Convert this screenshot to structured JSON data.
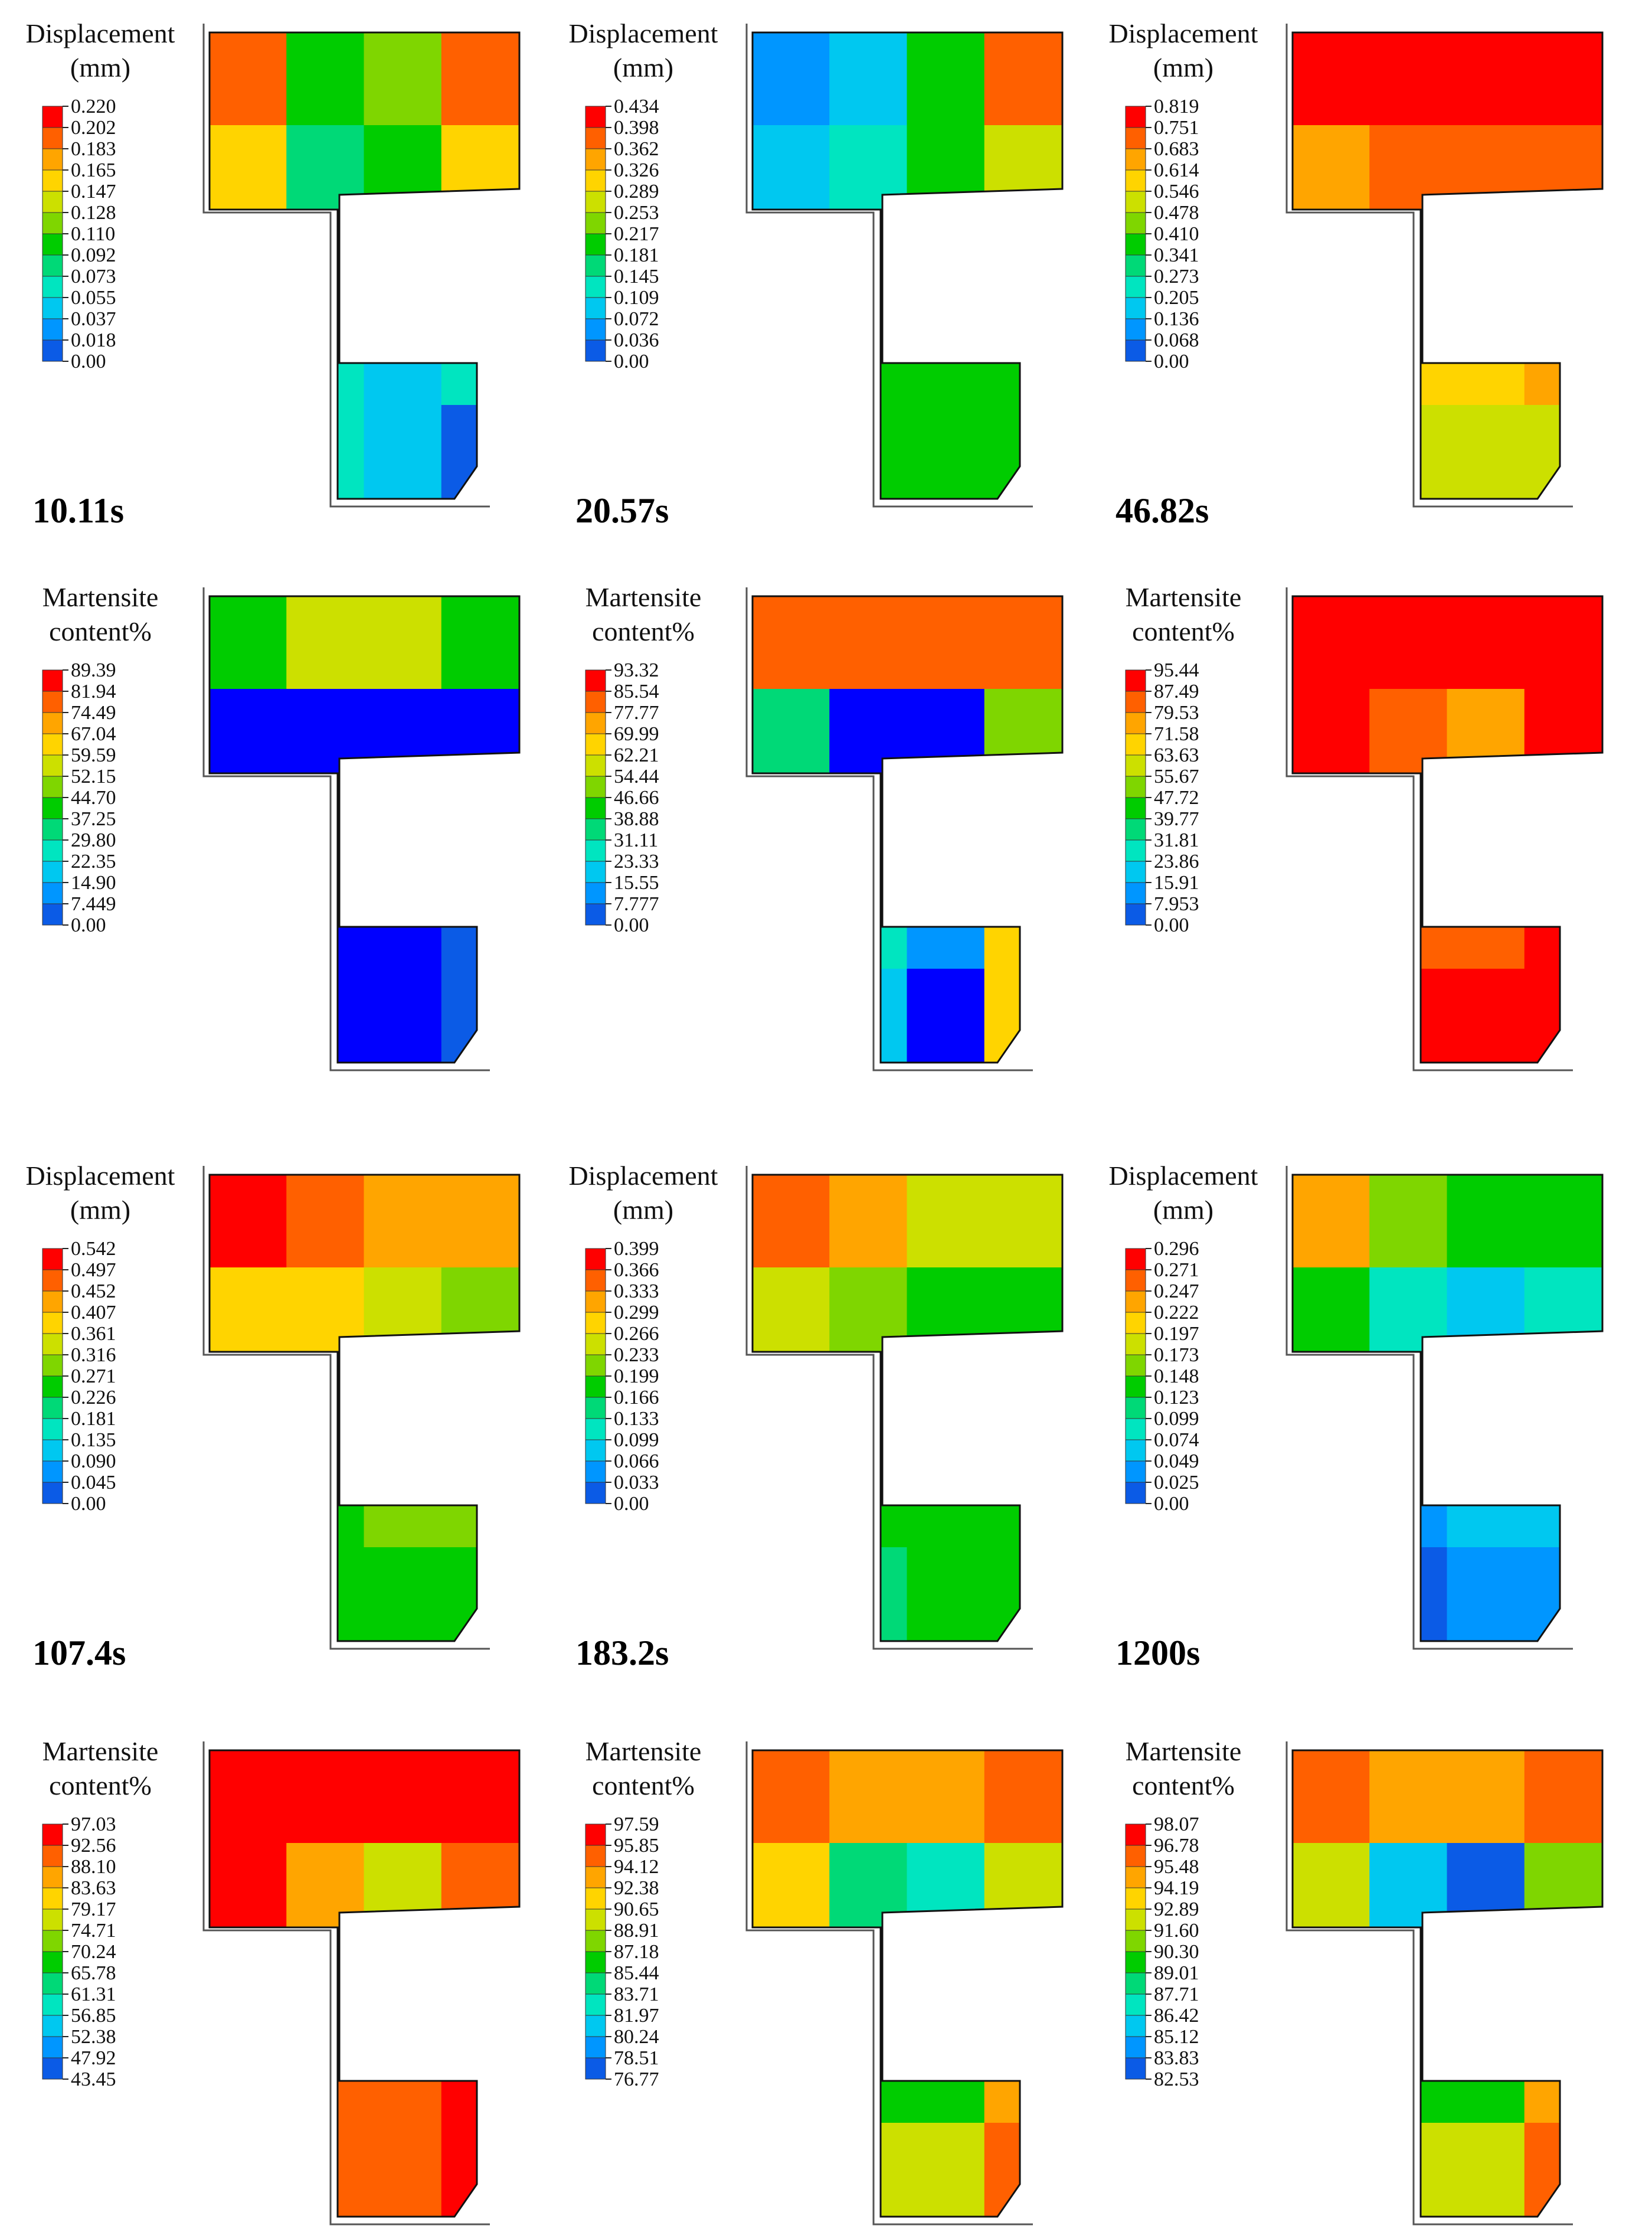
{
  "colorscale": [
    "#0000ff",
    "#0b5be6",
    "#0096ff",
    "#00c8f0",
    "#00e5c0",
    "#00d977",
    "#00cc00",
    "#7fd600",
    "#cce000",
    "#ffd400",
    "#ffa500",
    "#ff6000",
    "#ff0000"
  ],
  "panels": [
    {
      "row": 0,
      "col": 0,
      "kind": "disp",
      "title_lines": [
        "Displacement",
        "(mm)"
      ],
      "ticks": [
        "0.220",
        "0.202",
        "0.183",
        "0.165",
        "0.147",
        "0.128",
        "0.110",
        "0.092",
        "0.073",
        "0.055",
        "0.037",
        "0.018",
        "0.00"
      ],
      "field": [
        [
          11,
          6,
          7,
          11
        ],
        [
          9,
          5,
          6,
          9
        ],
        [
          7,
          4,
          3,
          5
        ],
        [
          6,
          4,
          3,
          4
        ],
        [
          5,
          4,
          3,
          1
        ]
      ]
    },
    {
      "row": 0,
      "col": 1,
      "kind": "disp",
      "title_lines": [
        "Displacement",
        "(mm)"
      ],
      "ticks": [
        "0.434",
        "0.398",
        "0.362",
        "0.326",
        "0.289",
        "0.253",
        "0.217",
        "0.181",
        "0.145",
        "0.109",
        "0.072",
        "0.036",
        "0.00"
      ],
      "field": [
        [
          2,
          3,
          6,
          11
        ],
        [
          3,
          4,
          6,
          8
        ],
        [
          5,
          6,
          6,
          6
        ],
        [
          6,
          6,
          6,
          6
        ],
        [
          6,
          6,
          6,
          6
        ]
      ]
    },
    {
      "row": 0,
      "col": 2,
      "kind": "disp",
      "title_lines": [
        "Displacement",
        "(mm)"
      ],
      "ticks": [
        "0.819",
        "0.751",
        "0.683",
        "0.614",
        "0.546",
        "0.478",
        "0.410",
        "0.341",
        "0.273",
        "0.205",
        "0.136",
        "0.068",
        "0.00"
      ],
      "field": [
        [
          12,
          12,
          12,
          12
        ],
        [
          10,
          11,
          11,
          11
        ],
        [
          10,
          10,
          10,
          10
        ],
        [
          8,
          9,
          9,
          10
        ],
        [
          6,
          8,
          8,
          8
        ]
      ]
    },
    {
      "row": 1,
      "col": 0,
      "kind": "mart",
      "title_lines": [
        "Martensite",
        "content%"
      ],
      "ticks": [
        "89.39",
        "81.94",
        "74.49",
        "67.04",
        "59.59",
        "52.15",
        "44.70",
        "37.25",
        "29.80",
        "22.35",
        "14.90",
        "7.449",
        "0.00"
      ],
      "field": [
        [
          6,
          8,
          8,
          6
        ],
        [
          0,
          0,
          0,
          0
        ],
        [
          0,
          0,
          0,
          0
        ],
        [
          0,
          0,
          0,
          1
        ],
        [
          0,
          0,
          0,
          1
        ]
      ]
    },
    {
      "row": 1,
      "col": 1,
      "kind": "mart",
      "title_lines": [
        "Martensite",
        "content%"
      ],
      "ticks": [
        "93.32",
        "85.54",
        "77.77",
        "69.99",
        "62.21",
        "54.44",
        "46.66",
        "38.88",
        "31.11",
        "23.33",
        "15.55",
        "7.777",
        "0.00"
      ],
      "field": [
        [
          11,
          11,
          11,
          11
        ],
        [
          5,
          0,
          0,
          7
        ],
        [
          9,
          3,
          1,
          9
        ],
        [
          9,
          4,
          2,
          9
        ],
        [
          9,
          3,
          0,
          9
        ]
      ]
    },
    {
      "row": 1,
      "col": 2,
      "kind": "mart",
      "title_lines": [
        "Martensite",
        "content%"
      ],
      "ticks": [
        "95.44",
        "87.49",
        "79.53",
        "71.58",
        "63.63",
        "55.67",
        "47.72",
        "39.77",
        "31.81",
        "23.86",
        "15.91",
        "7.953",
        "0.00"
      ],
      "field": [
        [
          12,
          12,
          12,
          12
        ],
        [
          12,
          11,
          10,
          12
        ],
        [
          12,
          11,
          11,
          12
        ],
        [
          12,
          11,
          11,
          12
        ],
        [
          12,
          12,
          12,
          12
        ]
      ]
    },
    {
      "row": 2,
      "col": 0,
      "kind": "disp",
      "title_lines": [
        "Displacement",
        "(mm)"
      ],
      "ticks": [
        "0.542",
        "0.497",
        "0.452",
        "0.407",
        "0.361",
        "0.316",
        "0.271",
        "0.226",
        "0.181",
        "0.135",
        "0.090",
        "0.045",
        "0.00"
      ],
      "field": [
        [
          12,
          11,
          10,
          10
        ],
        [
          9,
          9,
          8,
          7
        ],
        [
          7,
          8,
          8,
          7
        ],
        [
          6,
          6,
          7,
          7
        ],
        [
          6,
          6,
          6,
          6
        ]
      ]
    },
    {
      "row": 2,
      "col": 1,
      "kind": "disp",
      "title_lines": [
        "Displacement",
        "(mm)"
      ],
      "ticks": [
        "0.399",
        "0.366",
        "0.333",
        "0.299",
        "0.266",
        "0.233",
        "0.199",
        "0.166",
        "0.133",
        "0.099",
        "0.066",
        "0.033",
        "0.00"
      ],
      "field": [
        [
          11,
          10,
          8,
          8
        ],
        [
          8,
          7,
          6,
          6
        ],
        [
          6,
          6,
          6,
          6
        ],
        [
          5,
          6,
          6,
          6
        ],
        [
          5,
          5,
          6,
          6
        ]
      ]
    },
    {
      "row": 2,
      "col": 2,
      "kind": "disp",
      "title_lines": [
        "Displacement",
        "(mm)"
      ],
      "ticks": [
        "0.296",
        "0.271",
        "0.247",
        "0.222",
        "0.197",
        "0.173",
        "0.148",
        "0.123",
        "0.099",
        "0.074",
        "0.049",
        "0.025",
        "0.00"
      ],
      "field": [
        [
          10,
          7,
          6,
          6
        ],
        [
          6,
          4,
          3,
          4
        ],
        [
          4,
          2,
          3,
          4
        ],
        [
          3,
          2,
          3,
          3
        ],
        [
          1,
          1,
          2,
          2
        ]
      ]
    },
    {
      "row": 3,
      "col": 0,
      "kind": "mart",
      "title_lines": [
        "Martensite",
        "content%"
      ],
      "ticks": [
        "97.03",
        "92.56",
        "88.10",
        "83.63",
        "79.17",
        "74.71",
        "70.24",
        "65.78",
        "61.31",
        "56.85",
        "52.38",
        "47.92",
        "43.45"
      ],
      "field": [
        [
          12,
          12,
          12,
          12
        ],
        [
          12,
          10,
          8,
          11
        ],
        [
          12,
          11,
          11,
          12
        ],
        [
          12,
          11,
          11,
          12
        ],
        [
          12,
          11,
          11,
          12
        ]
      ]
    },
    {
      "row": 3,
      "col": 1,
      "kind": "mart",
      "title_lines": [
        "Martensite",
        "content%"
      ],
      "ticks": [
        "97.59",
        "95.85",
        "94.12",
        "92.38",
        "90.65",
        "88.91",
        "87.18",
        "85.44",
        "83.71",
        "81.97",
        "80.24",
        "78.51",
        "76.77"
      ],
      "field": [
        [
          11,
          10,
          10,
          11
        ],
        [
          9,
          5,
          4,
          8
        ],
        [
          10,
          6,
          6,
          10
        ],
        [
          10,
          6,
          6,
          10
        ],
        [
          11,
          8,
          8,
          11
        ]
      ]
    },
    {
      "row": 3,
      "col": 2,
      "kind": "mart",
      "title_lines": [
        "Martensite",
        "content%"
      ],
      "ticks": [
        "98.07",
        "96.78",
        "95.48",
        "94.19",
        "92.89",
        "91.60",
        "90.30",
        "89.01",
        "87.71",
        "86.42",
        "85.12",
        "83.83",
        "82.53"
      ],
      "field": [
        [
          11,
          10,
          10,
          11
        ],
        [
          8,
          3,
          1,
          7
        ],
        [
          10,
          6,
          6,
          10
        ],
        [
          10,
          6,
          6,
          10
        ],
        [
          11,
          8,
          8,
          11
        ]
      ]
    }
  ],
  "time_labels": [
    {
      "row": 0,
      "col": 0,
      "text": "10.11s"
    },
    {
      "row": 0,
      "col": 1,
      "text": "20.57s"
    },
    {
      "row": 0,
      "col": 2,
      "text": "46.82s"
    },
    {
      "row": 2,
      "col": 0,
      "text": "107.4s"
    },
    {
      "row": 2,
      "col": 1,
      "text": "183.2s"
    },
    {
      "row": 2,
      "col": 2,
      "text": "1200s"
    }
  ]
}
